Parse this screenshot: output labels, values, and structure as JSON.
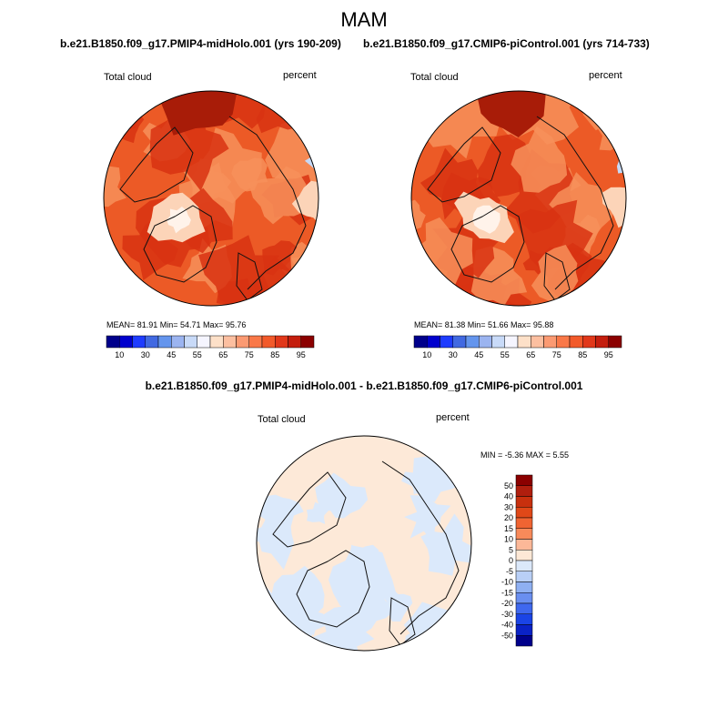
{
  "chart_data": [
    {
      "type": "heatmap",
      "projection": "north-polar-stereographic",
      "title": "b.e21.B1850.f09_g17.PMIP4-midHolo.001 (yrs 190-209)",
      "left_label": "Total cloud",
      "right_label": "percent",
      "stats": {
        "mean": "81.91",
        "min": "54.71",
        "max": "95.76"
      },
      "stats_text": "MEAN=  81.91   Min=  54.71   Max=  95.76",
      "colorbar": {
        "orientation": "horizontal",
        "levels": [
          10,
          20,
          30,
          40,
          45,
          50,
          55,
          60,
          65,
          70,
          75,
          80,
          85,
          90,
          95
        ],
        "tick_labels": [
          "10",
          "30",
          "45",
          "55",
          "65",
          "75",
          "85",
          "95"
        ]
      }
    },
    {
      "type": "heatmap",
      "projection": "north-polar-stereographic",
      "title": "b.e21.B1850.f09_g17.CMIP6-piControl.001 (yrs 714-733)",
      "left_label": "Total cloud",
      "right_label": "percent",
      "stats": {
        "mean": "81.38",
        "min": "51.66",
        "max": "95.88"
      },
      "stats_text": "MEAN=  81.38   Min=  51.66   Max=  95.88",
      "colorbar": {
        "orientation": "horizontal",
        "levels": [
          10,
          20,
          30,
          40,
          45,
          50,
          55,
          60,
          65,
          70,
          75,
          80,
          85,
          90,
          95
        ],
        "tick_labels": [
          "10",
          "30",
          "45",
          "55",
          "65",
          "75",
          "85",
          "95"
        ]
      }
    },
    {
      "type": "heatmap",
      "projection": "north-polar-stereographic",
      "title": "b.e21.B1850.f09_g17.PMIP4-midHolo.001 - b.e21.B1850.f09_g17.CMIP6-piControl.001",
      "left_label": "Total cloud",
      "right_label": "percent",
      "stats": {
        "min": "-5.36",
        "max": "5.55"
      },
      "stats_text": "MIN =  -5.36 MAX =   5.55",
      "colorbar": {
        "orientation": "vertical",
        "levels": [
          50,
          40,
          30,
          20,
          15,
          10,
          5,
          0,
          -5,
          -10,
          -15,
          -20,
          -30,
          -40,
          -50
        ],
        "tick_labels": [
          "50",
          "40",
          "30",
          "20",
          "15",
          "10",
          "5",
          "0",
          "-5",
          "-10",
          "-15",
          "-20",
          "-30",
          "-40",
          "-50"
        ]
      }
    }
  ],
  "figure": {
    "title": "MAM"
  },
  "colors": {
    "abs_bar": [
      "#00008b",
      "#0000cd",
      "#1e3cff",
      "#4169e1",
      "#6495ed",
      "#9bb4f0",
      "#c8daf8",
      "#f5f5ff",
      "#fde0c8",
      "#fcbfa0",
      "#fb9a72",
      "#f97848",
      "#f25a2a",
      "#e1381a",
      "#c41e0e",
      "#8b0000"
    ],
    "diff_bar": [
      "#8b0000",
      "#b01e0e",
      "#c8300e",
      "#e04818",
      "#f06432",
      "#f88a5a",
      "#fcb898",
      "#fde8d6",
      "#dbe8fa",
      "#b9cff6",
      "#8fb0f2",
      "#6a8ff0",
      "#3f68ee",
      "#1a44e6",
      "#0a22c6",
      "#00008b"
    ],
    "field_high": "#d83212",
    "field_mid": "#ec5a26",
    "field_low": "#f7905a",
    "field_pale": "#fcd4b8",
    "field_top": "#a81c08",
    "diff_pos": "#fde9d8",
    "diff_neg": "#dbe9fb"
  }
}
